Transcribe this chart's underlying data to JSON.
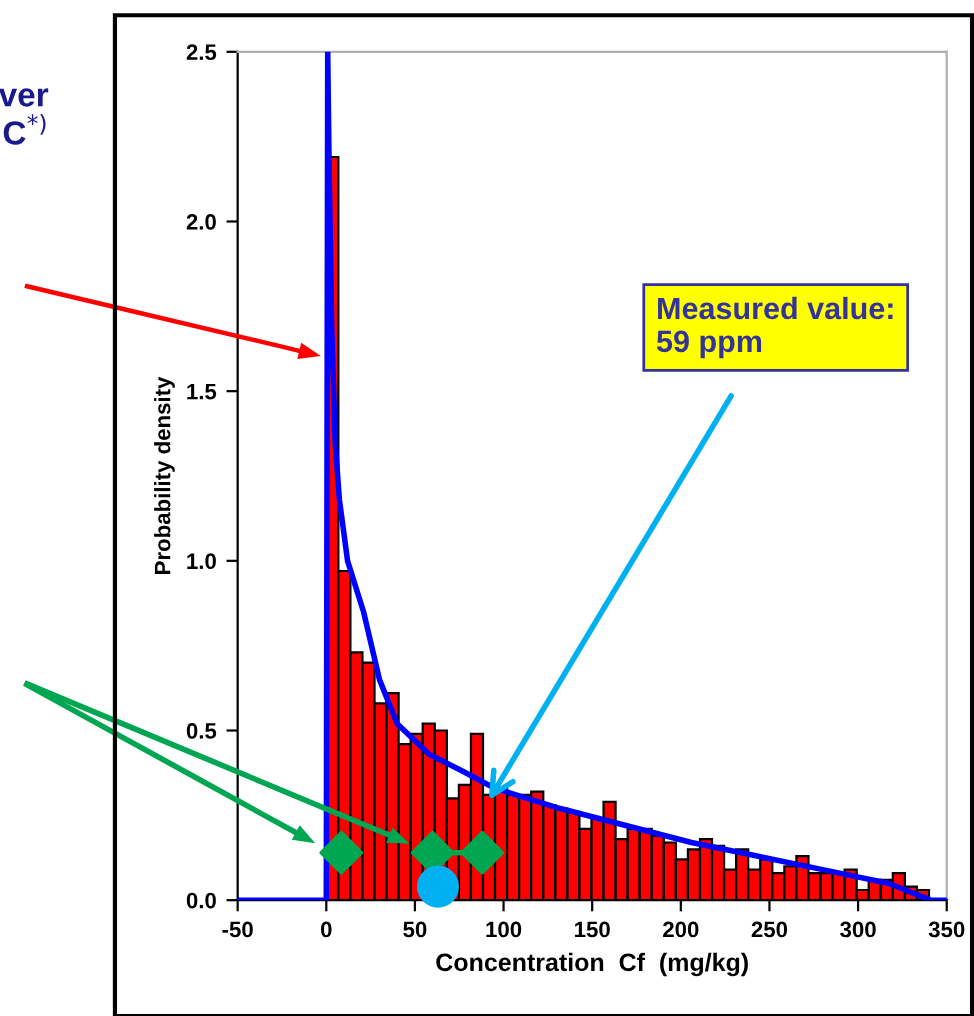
{
  "chart_data": {
    "type": "histogram",
    "xlabel": "Concentration  Cf  (mg/kg)",
    "ylabel": "Probability density",
    "bins": [
      0,
      6.8,
      13.6,
      20.4,
      27.2,
      34,
      40.8,
      47.6,
      54.4,
      61.2,
      68,
      74.8,
      81.6,
      88.4,
      95.2,
      102,
      108.8,
      115.6,
      122.4,
      129.2,
      136,
      142.8,
      149.6,
      156.4,
      163.2,
      170,
      176.8,
      183.6,
      190.4,
      197.2,
      204,
      210.8,
      217.6,
      224.4,
      231.2,
      238,
      244.8,
      251.6,
      258.4,
      265.2,
      272,
      278.8,
      285.6,
      292.4,
      299.2,
      306,
      312.8,
      319.6,
      326.4,
      333.2,
      340
    ],
    "values": [
      2.19,
      0.97,
      0.73,
      0.7,
      0.58,
      0.61,
      0.46,
      0.49,
      0.52,
      0.5,
      0.3,
      0.34,
      0.49,
      0.31,
      0.33,
      0.31,
      0.31,
      0.32,
      0.28,
      0.27,
      0.26,
      0.21,
      0.24,
      0.29,
      0.18,
      0.21,
      0.21,
      0.19,
      0.17,
      0.12,
      0.15,
      0.18,
      0.16,
      0.09,
      0.15,
      0.09,
      0.12,
      0.08,
      0.1,
      0.13,
      0.08,
      0.08,
      0.08,
      0.09,
      0.03,
      0.06,
      0.06,
      0.08,
      0.04,
      0.03
    ],
    "color": "#ff0000",
    "series": [
      {
        "type": "line",
        "color": "#0000ff",
        "x": [
          -50,
          0,
          0.8,
          1.5,
          3,
          5,
          7.4,
          12,
          21,
          30,
          40,
          58,
          77,
          95,
          132,
          169,
          206,
          243,
          280,
          317,
          341,
          350
        ],
        "values": [
          0,
          0,
          2.5,
          2.2,
          1.7,
          1.35,
          1.18,
          1.0,
          0.85,
          0.65,
          0.52,
          0.43,
          0.38,
          0.33,
          0.27,
          0.22,
          0.17,
          0.13,
          0.09,
          0.05,
          0,
          0
        ]
      },
      {
        "type": "scatter",
        "color": "#00a651",
        "marker": "diamond",
        "x": [
          8.5,
          60,
          88
        ],
        "values": [
          0.14,
          0.14,
          0.14
        ]
      },
      {
        "type": "line",
        "color": "#00a651",
        "x": [
          60,
          88
        ],
        "values": [
          0.14,
          0.14
        ]
      },
      {
        "type": "scatter",
        "color": "#00b0f0",
        "marker": "circle",
        "x": [
          63
        ],
        "values": [
          0.04
        ]
      }
    ],
    "xlim": [
      -50,
      350
    ],
    "xticks": [
      -50,
      0,
      50,
      100,
      150,
      200,
      250,
      300,
      350
    ],
    "ylim": [
      0,
      2.5
    ],
    "yticks": [
      {
        "value": 0,
        "label": "0.0"
      },
      {
        "value": 0.5,
        "label": "0.5"
      },
      {
        "value": 1,
        "label": "1.0"
      },
      {
        "value": 1.5,
        "label": "1.5"
      },
      {
        "value": 2,
        "label": "2.0"
      },
      {
        "value": 2.5,
        "label": "2.5"
      }
    ],
    "grid": false,
    "legend": false,
    "annotations": [
      "ver\nC$^{*)}$",
      "Measured value:\n59 ppm"
    ]
  }
}
